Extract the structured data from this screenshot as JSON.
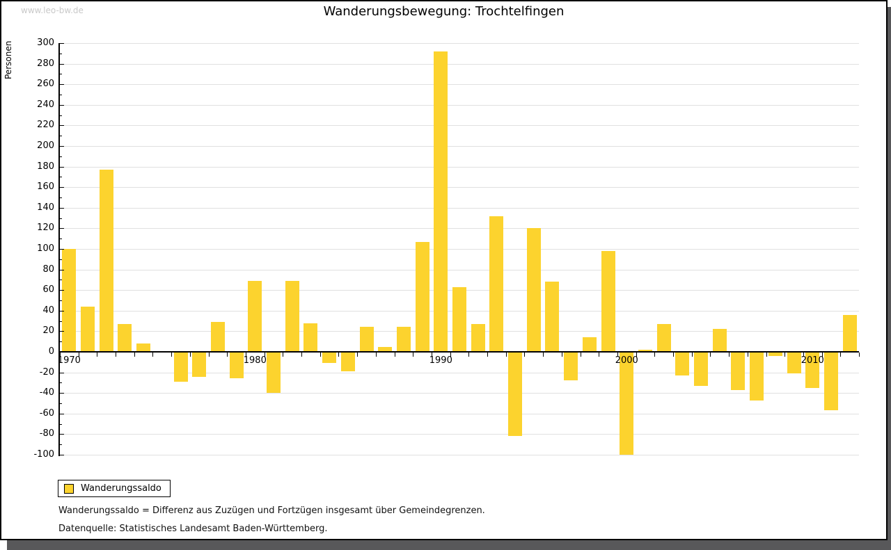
{
  "watermark": "www.leo-bw.de",
  "title": "Wanderungsbewegung: Trochtelfingen",
  "legend": {
    "label": "Wanderungssaldo"
  },
  "footnotes": {
    "definition": "Wanderungssaldo = Differenz aus Zuzügen und Fortzügen insgesamt über Gemeindegrenzen.",
    "source": "Datenquelle: Statistisches Landesamt Baden-Württemberg."
  },
  "colors": {
    "bar": "#fcd32e",
    "grid": "#e0e0e0",
    "axis": "#000000",
    "watermark": "#c9c9c9",
    "frame_shadow": "#58585a"
  },
  "chart_data": {
    "type": "bar",
    "title": "Wanderungsbewegung: Trochtelfingen",
    "xlabel": "",
    "ylabel": "Personen",
    "series_name": "Wanderungssaldo",
    "categories": [
      1970,
      1971,
      1972,
      1973,
      1974,
      1975,
      1976,
      1977,
      1978,
      1979,
      1980,
      1981,
      1982,
      1983,
      1984,
      1985,
      1986,
      1987,
      1988,
      1989,
      1990,
      1991,
      1992,
      1993,
      1994,
      1995,
      1996,
      1997,
      1998,
      1999,
      2000,
      2001,
      2002,
      2003,
      2004,
      2005,
      2006,
      2007,
      2008,
      2009,
      2010,
      2011,
      2012
    ],
    "values": [
      100,
      44,
      177,
      27,
      8,
      1,
      -29,
      -24,
      29,
      -26,
      69,
      -40,
      69,
      28,
      -11,
      -19,
      24,
      5,
      24,
      107,
      292,
      63,
      27,
      132,
      -82,
      120,
      68,
      -28,
      14,
      98,
      -100,
      2,
      27,
      -23,
      -33,
      22,
      -37,
      -47,
      -4,
      -21,
      -35,
      -57,
      36
    ],
    "ylim": [
      -100,
      300
    ],
    "y_tick_step": 20,
    "y_minor_tick_step": 10,
    "x_tick_labels": [
      1970,
      1980,
      1990,
      2000,
      2010
    ],
    "grid": true,
    "legend_position": "bottom-left"
  }
}
